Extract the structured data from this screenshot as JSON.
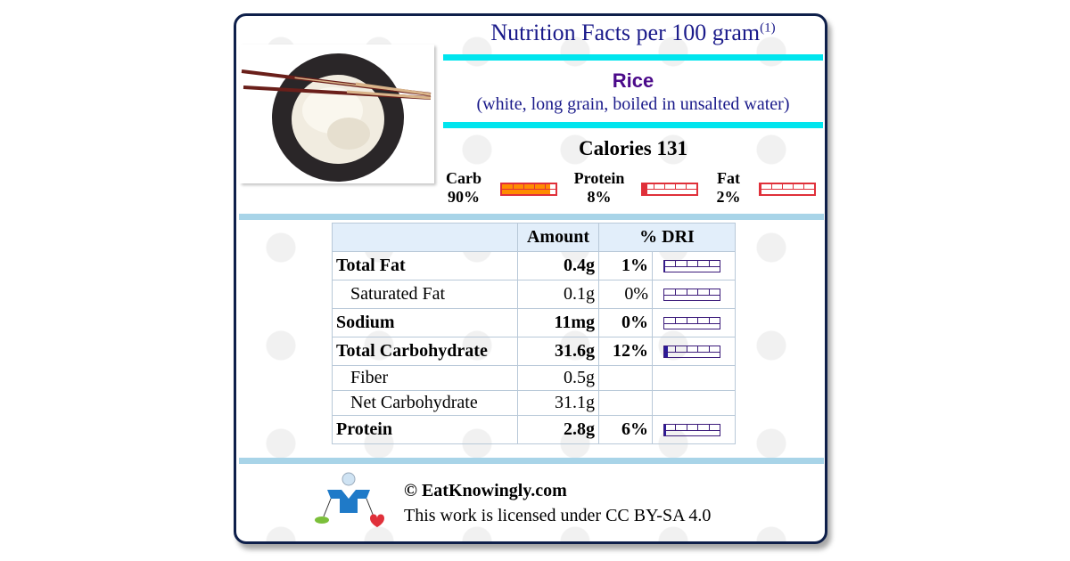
{
  "header": {
    "title": "Nutrition Facts per 100 gram",
    "title_note": "(1)",
    "food_name": "Rice",
    "food_description": "(white, long grain, boiled in unsalted water)",
    "calories": "Calories 131",
    "image_alt_icon": "rice-bowl-with-chopsticks-icon"
  },
  "macros": [
    {
      "label": "Carb",
      "percent": "90%",
      "value": 0.9,
      "color": "#ff8c00"
    },
    {
      "label": "Protein",
      "percent": "8%",
      "value": 0.08,
      "color": "#e0303a"
    },
    {
      "label": "Fat",
      "percent": "2%",
      "value": 0.02,
      "color": "#e0303a"
    }
  ],
  "table": {
    "headers": {
      "amount": "Amount",
      "dri": "% DRI"
    },
    "rows": [
      {
        "name": "Total Fat",
        "amount": "0.4g",
        "dri": "1%",
        "dri_value": 0.01,
        "bold": true
      },
      {
        "name": "Saturated Fat",
        "amount": "0.1g",
        "dri": "0%",
        "dri_value": 0.0,
        "bold": false
      },
      {
        "name": "Sodium",
        "amount": "11mg",
        "dri": "0%",
        "dri_value": 0.0,
        "bold": true
      },
      {
        "name": "Total Carbohydrate",
        "amount": "31.6g",
        "dri": "12%",
        "dri_value": 0.12,
        "bold": true
      },
      {
        "name": "Fiber",
        "amount": "0.5g",
        "dri": "",
        "bold": false
      },
      {
        "name": "Net Carbohydrate",
        "amount": "31.1g",
        "dri": "",
        "bold": false
      },
      {
        "name": "Protein",
        "amount": "2.8g",
        "dri": "6%",
        "dri_value": 0.06,
        "bold": true
      }
    ]
  },
  "footer": {
    "copyright": "© EatKnowingly.com",
    "license": "This work is licensed under CC BY-SA 4.0"
  },
  "colors": {
    "title": "#1a1a8a",
    "food_name": "#4b0a8a",
    "accent_cyan": "#00e5ee",
    "rule_blue": "#a8d4e8",
    "table_header": "#e2eefa"
  }
}
